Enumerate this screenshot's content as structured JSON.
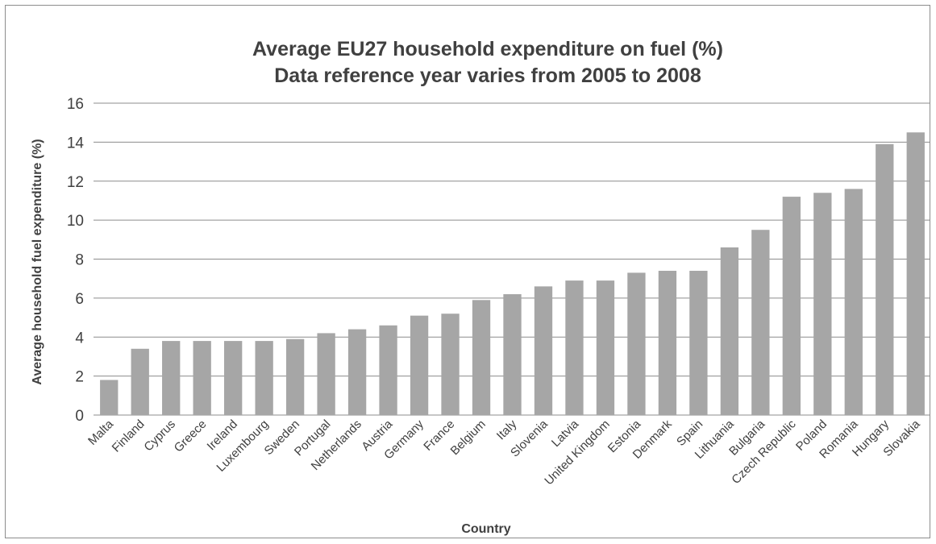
{
  "chart_data": {
    "type": "bar",
    "title": "Average EU27 household expenditure on fuel (%)",
    "subtitle": "Data reference year varies from 2005 to 2008",
    "xlabel": "Country",
    "ylabel": "Average household fuel expenditure (%)",
    "ylim": [
      0,
      16
    ],
    "yticks": [
      "0",
      "2",
      "4",
      "6",
      "8",
      "10",
      "12",
      "14",
      "16"
    ],
    "grid": true,
    "bar_color": "#a6a6a6",
    "categories": [
      "Malta",
      "Finland",
      "Cyprus",
      "Greece",
      "Ireland",
      "Luxembourg",
      "Sweden",
      "Portugal",
      "Netherlands",
      "Austria",
      "Germany",
      "France",
      "Belgium",
      "Italy",
      "Slovenia",
      "Latvia",
      "United Kingdom",
      "Estonia",
      "Denmark",
      "Spain",
      "Lithuania",
      "Bulgaria",
      "Czech Republic",
      "Poland",
      "Romania",
      "Hungary",
      "Slovakia"
    ],
    "values": [
      1.8,
      3.4,
      3.8,
      3.8,
      3.8,
      3.8,
      3.9,
      4.2,
      4.4,
      4.6,
      5.1,
      5.2,
      5.9,
      6.2,
      6.6,
      6.9,
      6.9,
      7.3,
      7.4,
      7.4,
      8.6,
      9.5,
      11.2,
      11.4,
      11.6,
      13.9,
      14.5
    ]
  }
}
